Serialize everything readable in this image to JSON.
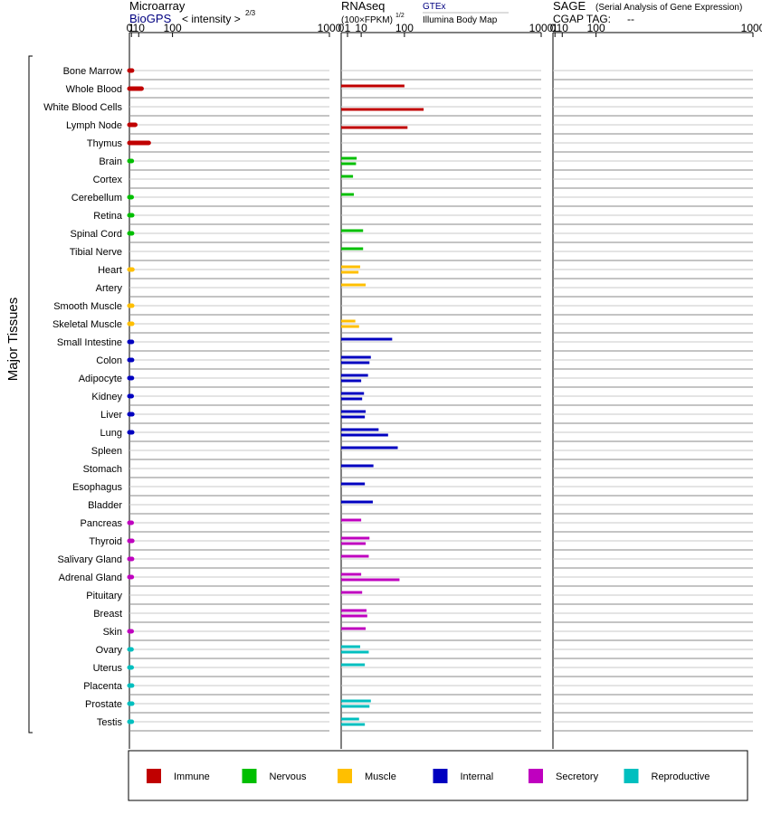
{
  "chart_data": {
    "type": "bar",
    "y_group_label": "Major Tissues",
    "panels": [
      {
        "id": "microarray",
        "title": "Microarray",
        "source_link": "BioGPS",
        "scale_label": "< intensity >",
        "scale_exponent": "2/3",
        "ticks": [
          "0",
          "1",
          "10",
          "100",
          "1000"
        ],
        "tick_values": [
          0,
          1,
          10,
          100,
          1000
        ],
        "xlim": [
          0,
          1000
        ]
      },
      {
        "id": "rnaseq",
        "title": "RNAseq",
        "scale_label": "(100×FPKM)",
        "scale_exponent": "1/2",
        "source_top": "GTEx",
        "source_bottom": "Illumina Body Map",
        "ticks": [
          "0",
          "1",
          "10",
          "100",
          "1000"
        ],
        "tick_values": [
          0,
          1,
          10,
          100,
          1000
        ],
        "xlim": [
          0,
          1000
        ]
      },
      {
        "id": "sage",
        "title": "SAGE",
        "subtitle": "(Serial Analysis of Gene Expression)",
        "tag_label": "CGAP TAG:",
        "tag_value": "--",
        "ticks": [
          "0",
          "1",
          "10",
          "100",
          "1000"
        ],
        "tick_values": [
          0,
          1,
          10,
          100,
          1000
        ],
        "xlim": [
          0,
          1000
        ]
      }
    ],
    "groups": [
      {
        "name": "Immune",
        "color": "#c00000"
      },
      {
        "name": "Nervous",
        "color": "#00bf00"
      },
      {
        "name": "Muscle",
        "color": "#ffbf00"
      },
      {
        "name": "Internal",
        "color": "#0000c0"
      },
      {
        "name": "Secretory",
        "color": "#bf00bf"
      },
      {
        "name": "Reproductive",
        "color": "#00bfbf"
      }
    ],
    "tissues": [
      {
        "name": "Bone Marrow",
        "group": 0,
        "microarray": 1.5,
        "gtex": null,
        "ibm": null
      },
      {
        "name": "Whole Blood",
        "group": 0,
        "microarray": 15,
        "gtex": 100,
        "ibm": null
      },
      {
        "name": "White Blood Cells",
        "group": 0,
        "microarray": null,
        "gtex": null,
        "ibm": 170
      },
      {
        "name": "Lymph Node",
        "group": 0,
        "microarray": 5,
        "gtex": null,
        "ibm": 110
      },
      {
        "name": "Thymus",
        "group": 0,
        "microarray": 30,
        "gtex": null,
        "ibm": null
      },
      {
        "name": "Brain",
        "group": 1,
        "microarray": 1.3,
        "gtex": 6,
        "ibm": 5.5
      },
      {
        "name": "Cortex",
        "group": 1,
        "microarray": null,
        "gtex": 3.5,
        "ibm": null
      },
      {
        "name": "Cerebellum",
        "group": 1,
        "microarray": 1.2,
        "gtex": 4,
        "ibm": null
      },
      {
        "name": "Retina",
        "group": 1,
        "microarray": 1.6,
        "gtex": null,
        "ibm": null
      },
      {
        "name": "Spinal Cord",
        "group": 1,
        "microarray": 1.5,
        "gtex": 12,
        "ibm": null
      },
      {
        "name": "Tibial Nerve",
        "group": 1,
        "microarray": null,
        "gtex": 12,
        "ibm": null
      },
      {
        "name": "Heart",
        "group": 2,
        "microarray": 1.8,
        "gtex": 9,
        "ibm": 7.5
      },
      {
        "name": "Artery",
        "group": 2,
        "microarray": null,
        "gtex": 15,
        "ibm": null
      },
      {
        "name": "Smooth Muscle",
        "group": 2,
        "microarray": 1.6,
        "gtex": null,
        "ibm": null
      },
      {
        "name": "Skeletal Muscle",
        "group": 2,
        "microarray": 1.6,
        "gtex": 5,
        "ibm": 8
      },
      {
        "name": "Small Intestine",
        "group": 3,
        "microarray": 1.4,
        "gtex": 65,
        "ibm": null
      },
      {
        "name": "Colon",
        "group": 3,
        "microarray": 1.5,
        "gtex": 22,
        "ibm": 20
      },
      {
        "name": "Adipocyte",
        "group": 3,
        "microarray": 1.4,
        "gtex": 18,
        "ibm": 10
      },
      {
        "name": "Kidney",
        "group": 3,
        "microarray": 1.2,
        "gtex": 13,
        "ibm": 11
      },
      {
        "name": "Liver",
        "group": 3,
        "microarray": 1.7,
        "gtex": 15,
        "ibm": 14
      },
      {
        "name": "Lung",
        "group": 3,
        "microarray": 1.6,
        "gtex": 35,
        "ibm": 55
      },
      {
        "name": "Spleen",
        "group": 3,
        "microarray": null,
        "gtex": 80,
        "ibm": null
      },
      {
        "name": "Stomach",
        "group": 3,
        "microarray": null,
        "gtex": 26,
        "ibm": null
      },
      {
        "name": "Esophagus",
        "group": 3,
        "microarray": null,
        "gtex": 14,
        "ibm": null
      },
      {
        "name": "Bladder",
        "group": 3,
        "microarray": null,
        "gtex": 25,
        "ibm": null
      },
      {
        "name": "Pancreas",
        "group": 4,
        "microarray": 1.2,
        "gtex": 10,
        "ibm": null
      },
      {
        "name": "Thyroid",
        "group": 4,
        "microarray": 1.7,
        "gtex": 20,
        "ibm": 15
      },
      {
        "name": "Salivary Gland",
        "group": 4,
        "microarray": 1.5,
        "gtex": 19,
        "ibm": null
      },
      {
        "name": "Adrenal Gland",
        "group": 4,
        "microarray": 1.3,
        "gtex": 10,
        "ibm": 85
      },
      {
        "name": "Pituitary",
        "group": 4,
        "microarray": null,
        "gtex": 11,
        "ibm": null
      },
      {
        "name": "Breast",
        "group": 4,
        "microarray": null,
        "gtex": 16,
        "ibm": 17
      },
      {
        "name": "Skin",
        "group": 4,
        "microarray": 1.2,
        "gtex": 15,
        "ibm": null
      },
      {
        "name": "Ovary",
        "group": 5,
        "microarray": 1.1,
        "gtex": 9,
        "ibm": 19
      },
      {
        "name": "Uterus",
        "group": 5,
        "microarray": 1.2,
        "gtex": 14,
        "ibm": null
      },
      {
        "name": "Placenta",
        "group": 5,
        "microarray": 1.5,
        "gtex": null,
        "ibm": null
      },
      {
        "name": "Prostate",
        "group": 5,
        "microarray": 1.6,
        "gtex": 22,
        "ibm": 20
      },
      {
        "name": "Testis",
        "group": 5,
        "microarray": 1.3,
        "gtex": 8,
        "ibm": 14
      }
    ]
  }
}
